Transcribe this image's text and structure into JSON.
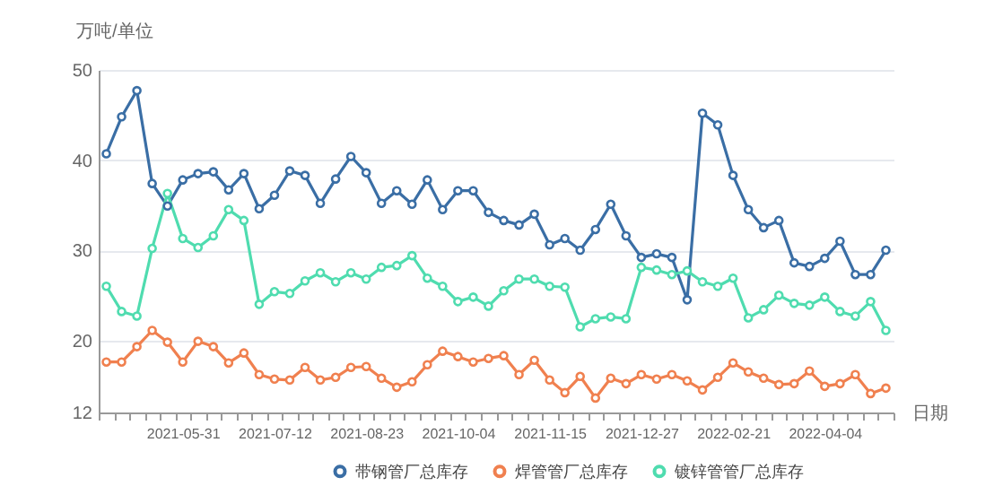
{
  "chart_data": {
    "type": "line",
    "ylabel": "万吨/单位",
    "xlabel": "日期",
    "categories": [
      null,
      null,
      null,
      null,
      null,
      "2021-05-31",
      null,
      null,
      null,
      null,
      null,
      "2021-07-12",
      null,
      null,
      null,
      null,
      null,
      "2021-08-23",
      null,
      null,
      null,
      null,
      null,
      "2021-10-04",
      null,
      null,
      null,
      null,
      null,
      "2021-11-15",
      null,
      null,
      null,
      null,
      null,
      "2021-12-27",
      null,
      null,
      null,
      null,
      null,
      "2022-02-21",
      null,
      null,
      null,
      null,
      null,
      "2022-04-04",
      null,
      null,
      null,
      null
    ],
    "series": [
      {
        "name": "带钢管厂总库存",
        "color": "#3a6ea5",
        "values": [
          40.7,
          44.8,
          47.7,
          37.4,
          34.9,
          37.8,
          38.5,
          38.7,
          36.7,
          38.5,
          34.6,
          36.1,
          38.8,
          38.3,
          35.2,
          37.9,
          40.4,
          38.6,
          35.2,
          36.6,
          35.1,
          37.8,
          34.5,
          36.6,
          36.6,
          34.2,
          33.3,
          32.8,
          34.0,
          30.6,
          31.3,
          30.0,
          32.3,
          35.1,
          31.6,
          29.2,
          29.6,
          29.2,
          24.5,
          45.2,
          43.9,
          38.3,
          34.5,
          32.5,
          33.3,
          28.6,
          28.2,
          29.1,
          31.0,
          27.3,
          27.3,
          30.0
        ]
      },
      {
        "name": "焊管管厂总库存",
        "color": "#f0804f",
        "values": [
          17.6,
          17.6,
          19.3,
          21.1,
          19.8,
          17.6,
          19.9,
          19.3,
          17.5,
          18.6,
          16.2,
          15.7,
          15.6,
          17.0,
          15.6,
          15.9,
          17.0,
          17.1,
          15.8,
          14.8,
          15.4,
          17.3,
          18.8,
          18.2,
          17.6,
          18.0,
          18.3,
          16.2,
          17.8,
          15.6,
          14.2,
          16.0,
          13.6,
          15.8,
          15.2,
          16.2,
          15.7,
          16.2,
          15.5,
          14.5,
          15.9,
          17.5,
          16.5,
          15.8,
          15.1,
          15.2,
          16.6,
          14.9,
          15.2,
          16.2,
          14.1,
          14.7
        ]
      },
      {
        "name": "镀锌管管厂总库存",
        "color": "#4fdcaf",
        "values": [
          26.0,
          23.2,
          22.7,
          30.2,
          36.3,
          31.3,
          30.3,
          31.6,
          34.5,
          33.3,
          24.0,
          25.4,
          25.2,
          26.6,
          27.5,
          26.5,
          27.5,
          26.8,
          28.1,
          28.3,
          29.4,
          26.9,
          26.0,
          24.3,
          24.8,
          23.8,
          25.5,
          26.8,
          26.8,
          26.0,
          25.9,
          21.5,
          22.4,
          22.6,
          22.4,
          28.1,
          27.8,
          27.3,
          27.7,
          26.5,
          26.0,
          26.9,
          22.5,
          23.4,
          25.0,
          24.1,
          23.9,
          24.8,
          23.2,
          22.7,
          24.3,
          21.1
        ]
      }
    ],
    "ylim": [
      12,
      50
    ],
    "yticks": [
      12,
      20,
      30,
      40,
      50
    ],
    "grid": "y",
    "legend": "bottom",
    "marker": "circle"
  }
}
